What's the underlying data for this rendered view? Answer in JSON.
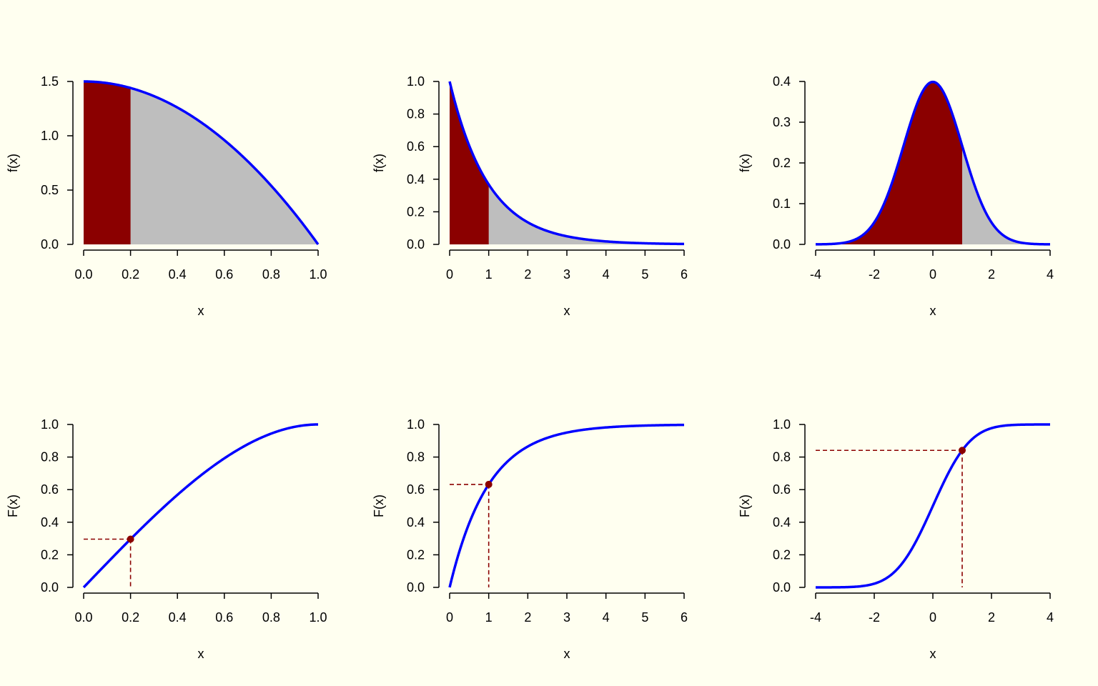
{
  "colors": {
    "background": "#fffff0",
    "curve": "#0000ff",
    "shade": "#8b0000",
    "fill": "#bebebe",
    "guide": "#8b0000",
    "axis": "#000000"
  },
  "chart_data": [
    {
      "type": "area",
      "row": 0,
      "col": 0,
      "kind": "pdf",
      "function": "1.5*(1-x^2)",
      "xlim": [
        0,
        1
      ],
      "ylim": [
        0,
        1.5
      ],
      "xticks": [
        "0.0",
        "0.2",
        "0.4",
        "0.6",
        "0.8",
        "1.0"
      ],
      "yticks": [
        "0.0",
        "0.5",
        "1.0",
        "1.5"
      ],
      "xlabel": "x",
      "ylabel": "f(x)",
      "shade_upto": 0.2,
      "x": [
        0,
        0.1,
        0.2,
        0.3,
        0.4,
        0.5,
        0.6,
        0.7,
        0.8,
        0.9,
        1.0
      ],
      "y": [
        1.5,
        1.485,
        1.44,
        1.365,
        1.26,
        1.125,
        0.96,
        0.765,
        0.54,
        0.285,
        0
      ]
    },
    {
      "type": "area",
      "row": 0,
      "col": 1,
      "kind": "pdf",
      "function": "exp(-x)",
      "xlim": [
        0,
        6
      ],
      "ylim": [
        0,
        1.0
      ],
      "xticks": [
        "0",
        "1",
        "2",
        "3",
        "4",
        "5",
        "6"
      ],
      "yticks": [
        "0.0",
        "0.2",
        "0.4",
        "0.6",
        "0.8",
        "1.0"
      ],
      "xlabel": "x",
      "ylabel": "f(x)",
      "shade_upto": 1,
      "x": [
        0,
        0.5,
        1,
        1.5,
        2,
        3,
        4,
        5,
        6
      ],
      "y": [
        1,
        0.607,
        0.368,
        0.223,
        0.135,
        0.05,
        0.018,
        0.007,
        0.002
      ]
    },
    {
      "type": "area",
      "row": 0,
      "col": 2,
      "kind": "pdf",
      "function": "standard normal density",
      "xlim": [
        -4,
        4
      ],
      "ylim": [
        0,
        0.4
      ],
      "xticks": [
        "-4",
        "-2",
        "0",
        "2",
        "4"
      ],
      "yticks": [
        "0.0",
        "0.1",
        "0.2",
        "0.3",
        "0.4"
      ],
      "xlabel": "x",
      "ylabel": "f(x)",
      "shade_upto": 1,
      "x": [
        -4,
        -3,
        -2,
        -1,
        0,
        1,
        2,
        3,
        4
      ],
      "y": [
        0.0001,
        0.0044,
        0.054,
        0.242,
        0.399,
        0.242,
        0.054,
        0.0044,
        0.0001
      ]
    },
    {
      "type": "line",
      "row": 1,
      "col": 0,
      "kind": "cdf",
      "function": "1.5*x - 0.5*x^3",
      "xlim": [
        0,
        1
      ],
      "ylim": [
        0,
        1.0
      ],
      "xticks": [
        "0.0",
        "0.2",
        "0.4",
        "0.6",
        "0.8",
        "1.0"
      ],
      "yticks": [
        "0.0",
        "0.2",
        "0.4",
        "0.6",
        "0.8",
        "1.0"
      ],
      "xlabel": "x",
      "ylabel": "F(x)",
      "point": [
        0.2,
        0.296
      ],
      "x": [
        0,
        0.2,
        0.4,
        0.6,
        0.8,
        1.0
      ],
      "y": [
        0,
        0.296,
        0.568,
        0.792,
        0.944,
        1.0
      ]
    },
    {
      "type": "line",
      "row": 1,
      "col": 1,
      "kind": "cdf",
      "function": "1-exp(-x)",
      "xlim": [
        0,
        6
      ],
      "ylim": [
        0,
        1.0
      ],
      "xticks": [
        "0",
        "1",
        "2",
        "3",
        "4",
        "5",
        "6"
      ],
      "yticks": [
        "0.0",
        "0.2",
        "0.4",
        "0.6",
        "0.8",
        "1.0"
      ],
      "xlabel": "x",
      "ylabel": "F(x)",
      "point": [
        1,
        0.632
      ],
      "x": [
        0,
        1,
        2,
        3,
        4,
        5,
        6
      ],
      "y": [
        0,
        0.632,
        0.865,
        0.95,
        0.982,
        0.993,
        0.998
      ]
    },
    {
      "type": "line",
      "row": 1,
      "col": 2,
      "kind": "cdf",
      "function": "standard normal CDF",
      "xlim": [
        -4,
        4
      ],
      "ylim": [
        0,
        1.0
      ],
      "xticks": [
        "-4",
        "-2",
        "0",
        "2",
        "4"
      ],
      "yticks": [
        "0.0",
        "0.2",
        "0.4",
        "0.6",
        "0.8",
        "1.0"
      ],
      "xlabel": "x",
      "ylabel": "F(x)",
      "point": [
        1,
        0.841
      ],
      "x": [
        -4,
        -3,
        -2,
        -1,
        0,
        1,
        2,
        3,
        4
      ],
      "y": [
        0,
        0.001,
        0.023,
        0.159,
        0.5,
        0.841,
        0.977,
        0.999,
        1.0
      ]
    }
  ]
}
